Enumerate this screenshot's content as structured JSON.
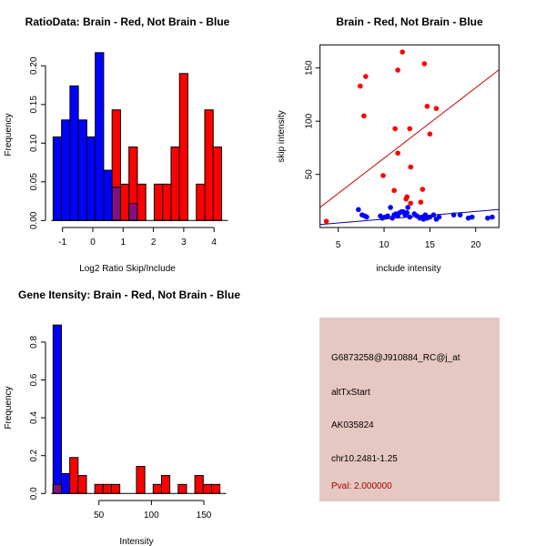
{
  "chart_data": [
    {
      "type": "bar",
      "title": "RatioData: Brain - Red, Not Brain - Blue",
      "xlabel": "Log2 Ratio Skip/Include",
      "ylabel": "Frequency",
      "bin_start": -1.31,
      "bin_width": 0.278,
      "xticks": [
        "-1",
        "0",
        "1",
        "2",
        "3",
        "4"
      ],
      "xtick_values": [
        -1,
        0,
        1,
        2,
        3,
        4
      ],
      "yticks": [
        "0.00",
        "0.05",
        "0.10",
        "0.15",
        "0.20"
      ],
      "ytick_values": [
        0,
        0.05,
        0.1,
        0.15,
        0.2
      ],
      "ylim": [
        0,
        0.22
      ],
      "series": [
        {
          "name": "Not Brain",
          "color": "#0000ff",
          "values": [
            0.108,
            0.13,
            0.174,
            0.13,
            0.108,
            0.217,
            0.065,
            0.043,
            0,
            0.022,
            0,
            0,
            0,
            0,
            0,
            0,
            0,
            0,
            0,
            0
          ]
        },
        {
          "name": "Brain",
          "color": "#ff0000",
          "values": [
            0,
            0,
            0,
            0,
            0,
            0,
            0,
            0.143,
            0.047,
            0.095,
            0.047,
            0,
            0.047,
            0.047,
            0.095,
            0.19,
            0,
            0.047,
            0.143,
            0.095
          ]
        }
      ],
      "overlap_color": "#80117f"
    },
    {
      "type": "scatter",
      "title": "Brain - Red, Not Brain - Blue",
      "xlabel": "include intensity",
      "ylabel": "skip intensity",
      "xticks": [
        "5",
        "10",
        "15",
        "20"
      ],
      "xtick_values": [
        5,
        10,
        15,
        20
      ],
      "yticks": [
        "50",
        "100",
        "150"
      ],
      "ytick_values": [
        50,
        100,
        150
      ],
      "xlim": [
        3,
        22.5
      ],
      "ylim": [
        -3,
        169
      ],
      "series": [
        {
          "name": "Brain",
          "color": "#ff0000",
          "line_color": "#cc0000",
          "fit": [
            [
              3,
              19
            ],
            [
              22.5,
              148
            ]
          ],
          "points": [
            [
              3.7,
              6
            ],
            [
              7.4,
              133
            ],
            [
              8,
              142
            ],
            [
              7.8,
              105
            ],
            [
              11.5,
              148
            ],
            [
              12,
              165
            ],
            [
              14.4,
              154
            ],
            [
              14.7,
              114
            ],
            [
              15.7,
              112
            ],
            [
              11.2,
              93
            ],
            [
              12.8,
              93
            ],
            [
              15,
              88
            ],
            [
              11.5,
              70
            ],
            [
              12.9,
              57
            ],
            [
              9.9,
              49
            ],
            [
              11.1,
              35
            ],
            [
              14.2,
              36
            ],
            [
              12.5,
              29
            ],
            [
              12.4,
              27
            ],
            [
              12.9,
              23
            ],
            [
              14,
              24
            ]
          ]
        },
        {
          "name": "Not Brain",
          "color": "#0000ff",
          "line_color": "#0000aa",
          "fit": [
            [
              3,
              3
            ],
            [
              22.5,
              17
            ]
          ],
          "points": [
            [
              7.2,
              17
            ],
            [
              7.6,
              12
            ],
            [
              7.9,
              11
            ],
            [
              8.1,
              10
            ],
            [
              9.6,
              11
            ],
            [
              9.8,
              9
            ],
            [
              10.1,
              10
            ],
            [
              10.4,
              11
            ],
            [
              10.7,
              19
            ],
            [
              10.9,
              9
            ],
            [
              11.1,
              12
            ],
            [
              11.3,
              13
            ],
            [
              11.5,
              11
            ],
            [
              11.7,
              14
            ],
            [
              11.9,
              15
            ],
            [
              12.1,
              15
            ],
            [
              12.3,
              12
            ],
            [
              12.5,
              14
            ],
            [
              12.6,
              19
            ],
            [
              12.8,
              10
            ],
            [
              13.3,
              13
            ],
            [
              13.6,
              11
            ],
            [
              13.9,
              9
            ],
            [
              14.1,
              10
            ],
            [
              14.3,
              8
            ],
            [
              14.5,
              12
            ],
            [
              14.7,
              9
            ],
            [
              15,
              10
            ],
            [
              15.4,
              12
            ],
            [
              15.7,
              8
            ],
            [
              16,
              10
            ],
            [
              17.6,
              12
            ],
            [
              18.3,
              12
            ],
            [
              19.2,
              9
            ],
            [
              19.6,
              10
            ],
            [
              21.3,
              9
            ],
            [
              21.8,
              10
            ]
          ]
        }
      ]
    },
    {
      "type": "bar",
      "title": "Gene Itensity: Brain - Red, Not Brain - Blue",
      "xlabel": "Intensity",
      "ylabel": "Frequency",
      "bin_start": 6.3,
      "bin_width": 7.95,
      "xticks": [
        "50",
        "100",
        "150"
      ],
      "xtick_values": [
        50,
        100,
        150
      ],
      "yticks": [
        "0.0",
        "0.2",
        "0.4",
        "0.6",
        "0.8"
      ],
      "ytick_values": [
        0,
        0.2,
        0.4,
        0.6,
        0.8
      ],
      "ylim": [
        0,
        0.9
      ],
      "series": [
        {
          "name": "Not Brain",
          "color": "#0000ff",
          "values": [
            0.89,
            0.105,
            0,
            0,
            0,
            0,
            0,
            0,
            0,
            0,
            0,
            0,
            0,
            0,
            0,
            0,
            0,
            0,
            0,
            0
          ]
        },
        {
          "name": "Brain",
          "color": "#ff0000",
          "values": [
            0.048,
            0,
            0.19,
            0.095,
            0,
            0.048,
            0.048,
            0.048,
            0,
            0,
            0.143,
            0,
            0.048,
            0.095,
            0,
            0.048,
            0,
            0.095,
            0.048,
            0.048
          ]
        }
      ],
      "overlap_color": "#80117f"
    }
  ],
  "info_panel": {
    "background": "#e6c8c2",
    "probe": "G6873258@J910884_RC@j_at",
    "event_type": "altTxStart",
    "accession": "AK035824",
    "location": "chr10.2481-1.25",
    "pval": "Pval: 2.000000",
    "pval_color": "#aa0000"
  }
}
